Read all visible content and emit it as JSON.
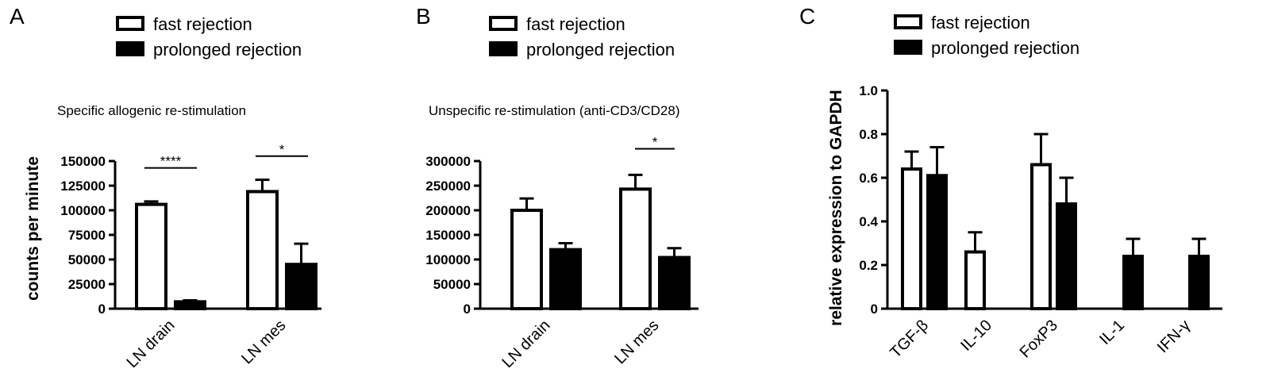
{
  "chart_data": [
    {
      "panel": "A",
      "type": "bar",
      "title": "Specific allogenic re-stimulation",
      "ylabel": "counts per minute",
      "xlabel": "",
      "ylim": [
        0,
        150000
      ],
      "yticks": [
        0,
        25000,
        50000,
        75000,
        100000,
        125000,
        150000
      ],
      "ytick_labels": [
        "0",
        "25000",
        "50000",
        "75000",
        "100000",
        "125000",
        "150000"
      ],
      "categories": [
        "LN drain",
        "LN mes"
      ],
      "series": [
        {
          "name": "fast rejection",
          "style": "open",
          "values": [
            106000,
            119000
          ],
          "errors": [
            3000,
            12000
          ]
        },
        {
          "name": "prolonged rejection",
          "style": "filled",
          "values": [
            7000,
            45000
          ],
          "errors": [
            1500,
            21000
          ]
        }
      ],
      "significance": [
        {
          "category": "LN drain",
          "label": "****",
          "y": 143000
        },
        {
          "category": "LN mes",
          "label": "*",
          "y": 155000
        }
      ],
      "legend": "top-center"
    },
    {
      "panel": "B",
      "type": "bar",
      "title": "Unspecific re-stimulation (anti-CD3/CD28)",
      "ylabel": "",
      "xlabel": "",
      "ylim": [
        0,
        300000
      ],
      "yticks": [
        0,
        50000,
        100000,
        150000,
        200000,
        250000,
        300000
      ],
      "ytick_labels": [
        "0",
        "50000",
        "100000",
        "150000",
        "200000",
        "250000",
        "300000"
      ],
      "categories": [
        "LN drain",
        "LN mes"
      ],
      "series": [
        {
          "name": "fast rejection",
          "style": "open",
          "values": [
            200000,
            243000
          ],
          "errors": [
            24000,
            29000
          ]
        },
        {
          "name": "prolonged rejection",
          "style": "filled",
          "values": [
            120000,
            104000
          ],
          "errors": [
            13000,
            19000
          ]
        }
      ],
      "significance": [
        {
          "category": "LN mes",
          "label": "*",
          "y": 325000
        }
      ],
      "legend": "top-center"
    },
    {
      "panel": "C",
      "type": "bar",
      "title": "",
      "ylabel": "relative expression to GAPDH",
      "xlabel": "",
      "ylim": [
        0,
        1.0
      ],
      "yticks": [
        0,
        0.2,
        0.4,
        0.6,
        0.8,
        1.0
      ],
      "ytick_labels": [
        "0",
        "0.2",
        "0.4",
        "0.6",
        "0.8",
        "1.0"
      ],
      "categories": [
        "TGF-β",
        "IL-10",
        "FoxP3",
        "IL-1",
        "IFN-γ"
      ],
      "series": [
        {
          "name": "fast rejection",
          "style": "open",
          "values": [
            0.64,
            0.26,
            0.66,
            0,
            0
          ],
          "errors": [
            0.08,
            0.09,
            0.14,
            0,
            0
          ]
        },
        {
          "name": "prolonged rejection",
          "style": "filled",
          "values": [
            0.61,
            0,
            0.48,
            0.24,
            0.24
          ],
          "errors": [
            0.13,
            0,
            0.12,
            0.08,
            0.08
          ]
        }
      ],
      "significance": [],
      "legend": "top-center"
    }
  ]
}
